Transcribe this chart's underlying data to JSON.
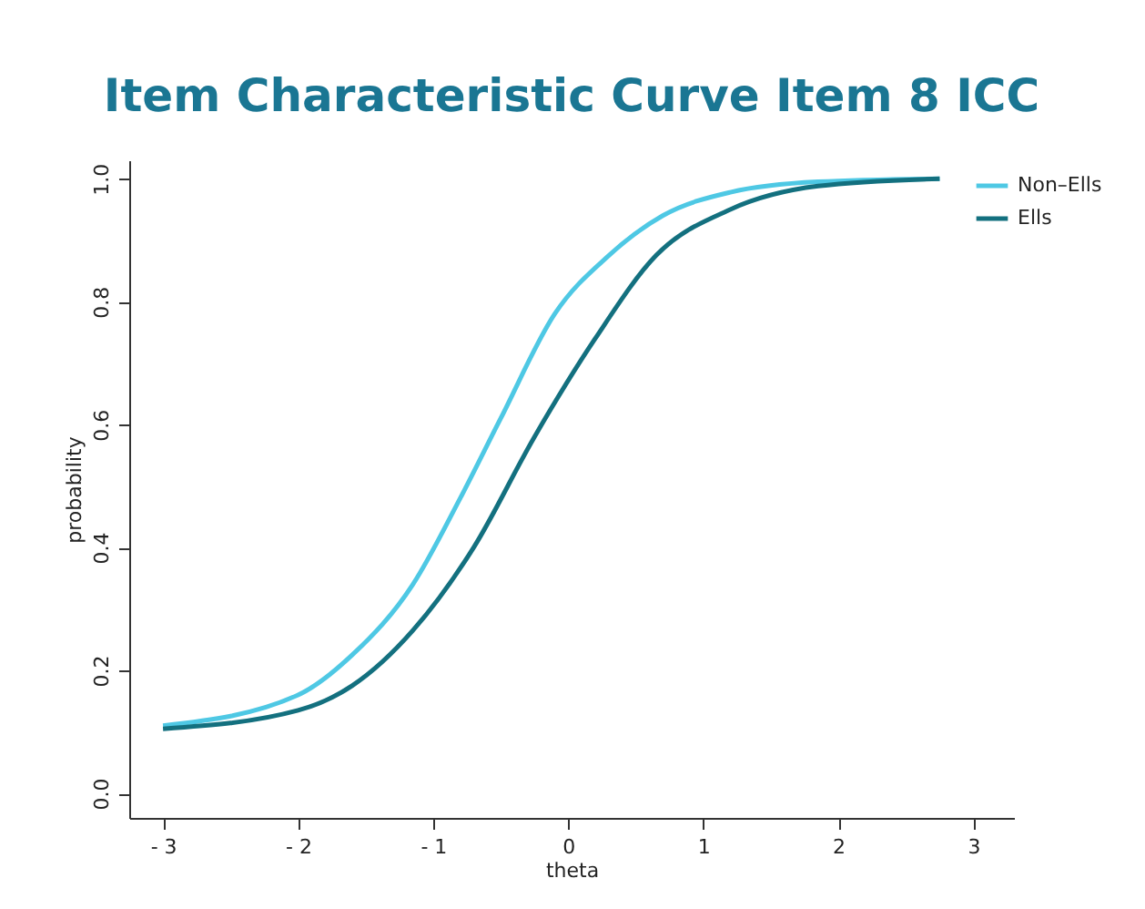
{
  "chart_data": {
    "type": "line",
    "title": "Item Characteristic Curve Item 8 ICC",
    "xlabel": "theta",
    "ylabel": "probability",
    "xlim": [
      -3.25,
      3.3
    ],
    "ylim": [
      -0.04,
      1.03
    ],
    "xticks": [
      {
        "value": -3,
        "label": "- 3"
      },
      {
        "value": -2,
        "label": "- 2"
      },
      {
        "value": -1,
        "label": "- 1"
      },
      0,
      1,
      2,
      3
    ],
    "yticks": [
      {
        "value": 0,
        "label": "0.0"
      },
      0.2,
      0.4,
      0.6,
      0.8,
      {
        "value": 1,
        "label": "1.0"
      }
    ],
    "grid": false,
    "legend": "top right",
    "marker": "none",
    "line_style": "solid",
    "series": [
      {
        "name": "Non–Ells",
        "color": "#4ec8e4",
        "x": [
          -3,
          -2,
          -1.6,
          -1.15,
          -0.8,
          -0.5,
          -0.1,
          0.3,
          0.7,
          1.2,
          1.85,
          2.75
        ],
        "values": [
          0.11,
          0.16,
          0.225,
          0.34,
          0.48,
          0.61,
          0.78,
          0.875,
          0.94,
          0.978,
          0.995,
          1.0
        ]
      },
      {
        "name": "Ells",
        "color": "#13707f",
        "x": [
          -3,
          -2,
          -1.6,
          -1.15,
          -0.7,
          -0.25,
          0.2,
          0.65,
          1.2,
          1.85,
          2.75
        ],
        "values": [
          0.105,
          0.135,
          0.175,
          0.265,
          0.4,
          0.58,
          0.74,
          0.875,
          0.95,
          0.988,
          1.0
        ]
      }
    ]
  }
}
